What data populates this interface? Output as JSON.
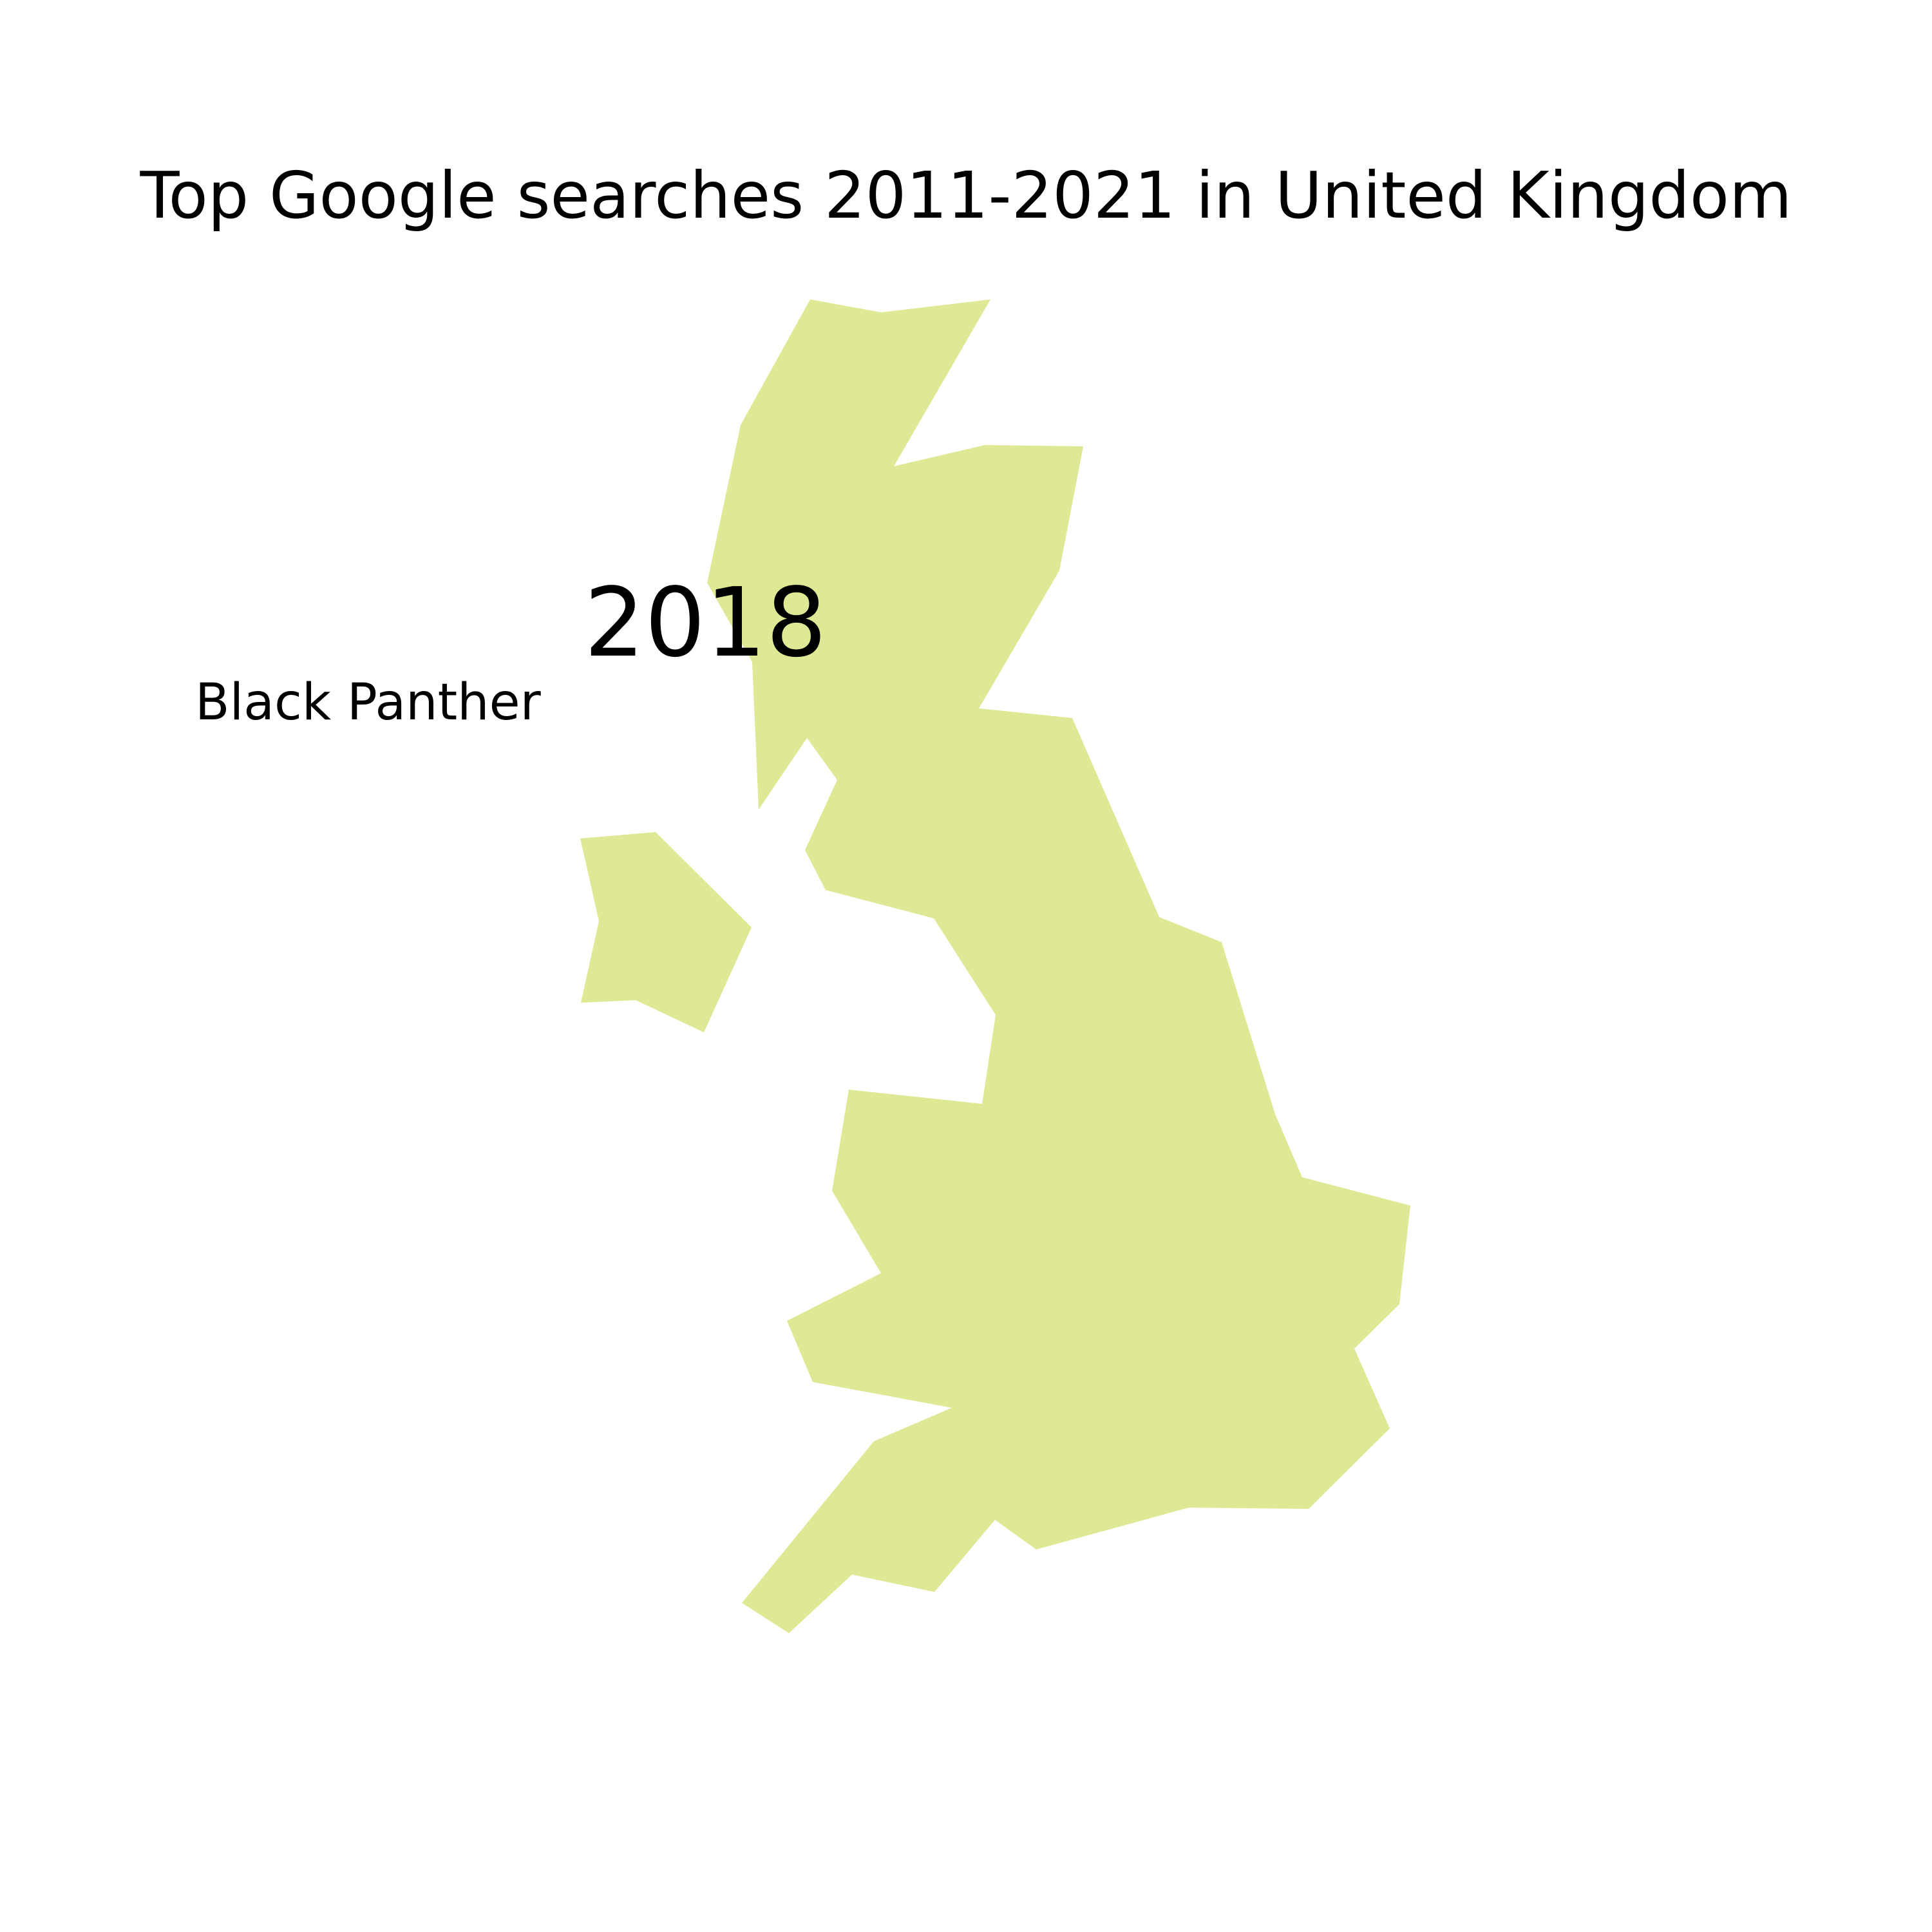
{
  "map": {
    "title": "Top Google searches 2011-2021 in United Kingdom",
    "year": "2018",
    "top_search": "Black Panther",
    "region": "United Kingdom",
    "land_color": "#dfe894",
    "background_color": "#ffffff"
  }
}
